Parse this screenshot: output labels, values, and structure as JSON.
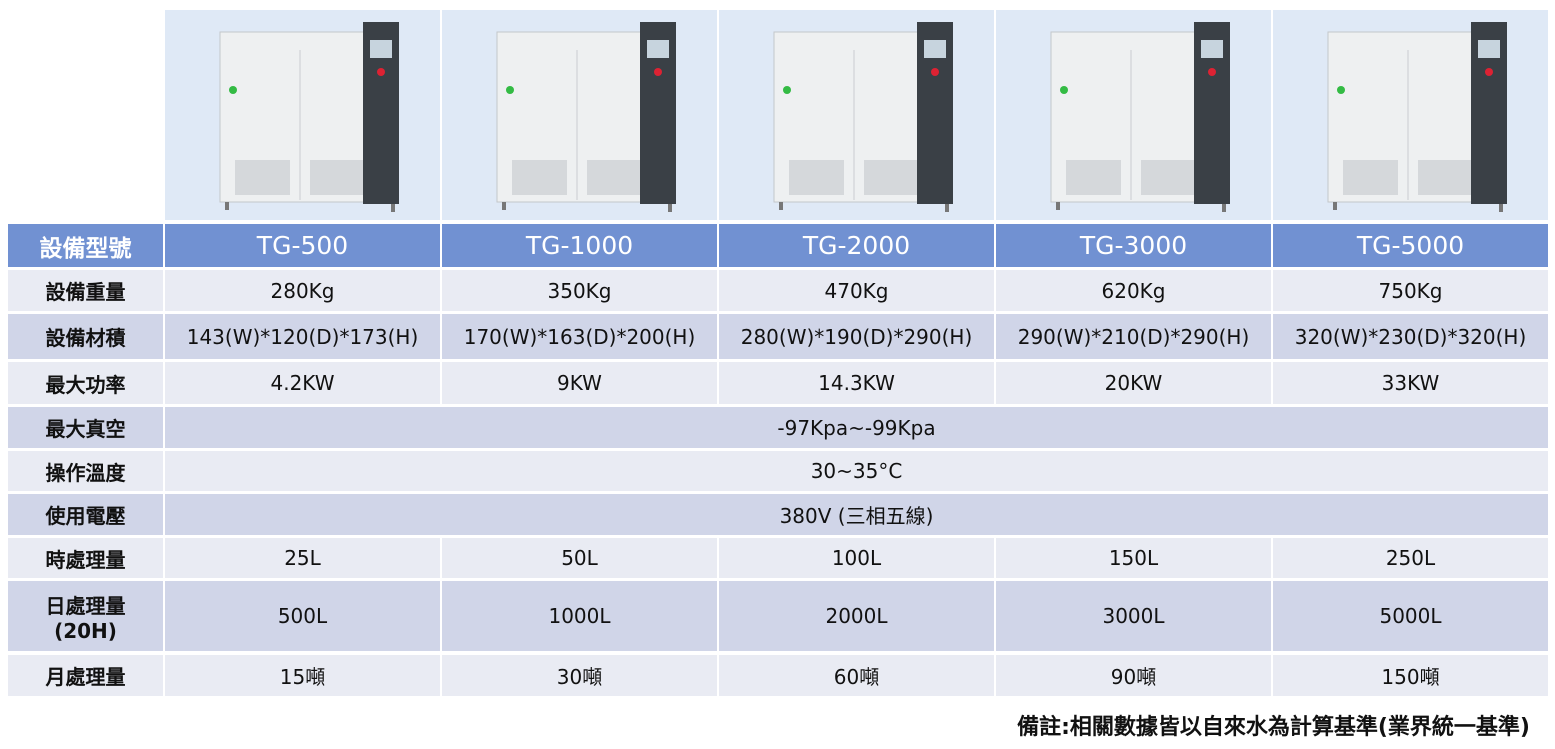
{
  "table": {
    "header": {
      "label": "設備型號",
      "models": [
        "TG-500",
        "TG-1000",
        "TG-2000",
        "TG-3000",
        "TG-5000"
      ]
    },
    "rows": [
      {
        "label": "設備重量",
        "cells": [
          "280Kg",
          "350Kg",
          "470Kg",
          "620Kg",
          "750Kg"
        ]
      },
      {
        "label": "設備材積",
        "cells": [
          "143(W)*120(D)*173(H)",
          "170(W)*163(D)*200(H)",
          "280(W)*190(D)*290(H)",
          "290(W)*210(D)*290(H)",
          "320(W)*230(D)*320(H)"
        ]
      },
      {
        "label": "最大功率",
        "cells": [
          "4.2KW",
          "9KW",
          "14.3KW",
          "20KW",
          "33KW"
        ]
      },
      {
        "label": "最大真空",
        "cells": [
          "-97Kpa~-99Kpa"
        ]
      },
      {
        "label": "操作溫度",
        "cells": [
          "30~35°C"
        ]
      },
      {
        "label": "使用電壓",
        "cells": [
          "380V (三相五線)"
        ]
      },
      {
        "label": "時處理量",
        "cells": [
          "25L",
          "50L",
          "100L",
          "150L",
          "250L"
        ]
      },
      {
        "label": "日處理量",
        "sublabel": "(20H)",
        "cells": [
          "500L",
          "1000L",
          "2000L",
          "3000L",
          "5000L"
        ]
      },
      {
        "label": "月處理量",
        "cells": [
          "15噸",
          "30噸",
          "60噸",
          "90噸",
          "150噸"
        ]
      }
    ]
  },
  "footnote": "備註:相關數據皆以自來水為計算基準(業界統一基準)"
}
